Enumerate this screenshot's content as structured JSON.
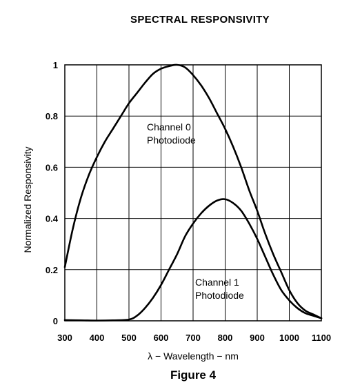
{
  "chart_data": {
    "type": "line",
    "title": "SPECTRAL RESPONSIVITY",
    "caption": "Figure 4",
    "xlabel": "λ − Wavelength − nm",
    "ylabel": "Normalized Responsivity",
    "xlim": [
      300,
      1100
    ],
    "ylim": [
      0,
      1
    ],
    "xticks": [
      300,
      400,
      500,
      600,
      700,
      800,
      900,
      1000,
      1100
    ],
    "yticks": [
      0,
      0.2,
      0.4,
      0.6,
      0.8,
      1
    ],
    "ytick_labels": [
      "0",
      "0.2",
      "0.4",
      "0.6",
      "0.8",
      "1"
    ],
    "grid": true,
    "series": [
      {
        "name": "Channel 0 Photodiode",
        "label_lines": [
          "Channel 0",
          "Photodiode"
        ],
        "x": [
          300,
          325,
          350,
          375,
          400,
          425,
          450,
          475,
          500,
          525,
          550,
          575,
          600,
          625,
          650,
          675,
          700,
          725,
          750,
          775,
          800,
          825,
          850,
          875,
          900,
          925,
          950,
          975,
          1000,
          1025,
          1050,
          1075,
          1100
        ],
        "y": [
          0.21,
          0.36,
          0.48,
          0.57,
          0.64,
          0.7,
          0.75,
          0.8,
          0.85,
          0.89,
          0.93,
          0.965,
          0.985,
          0.995,
          1.0,
          0.99,
          0.96,
          0.92,
          0.87,
          0.81,
          0.75,
          0.68,
          0.6,
          0.51,
          0.43,
          0.34,
          0.26,
          0.19,
          0.12,
          0.07,
          0.04,
          0.025,
          0.01
        ]
      },
      {
        "name": "Channel 1 Photodiode",
        "label_lines": [
          "Channel 1",
          "Photodiode"
        ],
        "x": [
          300,
          350,
          400,
          450,
          500,
          525,
          550,
          575,
          600,
          625,
          650,
          675,
          700,
          725,
          750,
          775,
          800,
          825,
          850,
          875,
          900,
          925,
          950,
          975,
          1000,
          1025,
          1050,
          1075,
          1100
        ],
        "y": [
          0.003,
          0.002,
          0.001,
          0.002,
          0.005,
          0.02,
          0.05,
          0.09,
          0.14,
          0.2,
          0.26,
          0.33,
          0.38,
          0.42,
          0.45,
          0.47,
          0.475,
          0.46,
          0.43,
          0.38,
          0.32,
          0.25,
          0.18,
          0.12,
          0.08,
          0.05,
          0.03,
          0.02,
          0.01
        ]
      }
    ]
  }
}
